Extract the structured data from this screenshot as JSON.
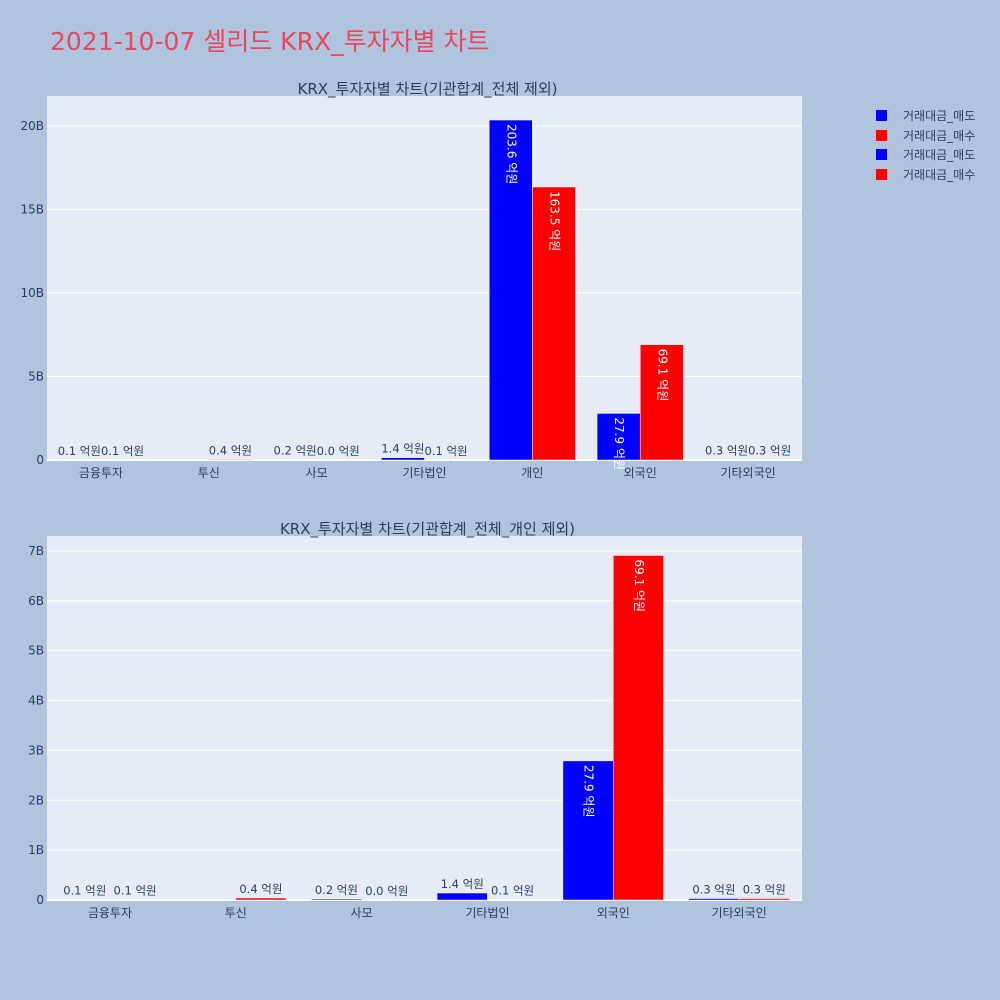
{
  "page_title": "2021-10-07 셀리드 KRX_투자자별 차트",
  "legend": [
    {
      "label": "거래대금_매도",
      "color": "#0000ff"
    },
    {
      "label": "거래대금_매수",
      "color": "#ff0000"
    },
    {
      "label": "거래대금_매도",
      "color": "#0000ff"
    },
    {
      "label": "거래대금_매수",
      "color": "#ff0000"
    }
  ],
  "chart_data": [
    {
      "type": "bar",
      "title": "KRX_투자자별 차트(기관합계_전체 제외)",
      "categories": [
        "금융투자",
        "투신",
        "사모",
        "기타법인",
        "개인",
        "외국인",
        "기타외국인"
      ],
      "ylim": [
        0,
        21800000000
      ],
      "ytick_values": [
        0,
        5000000000,
        10000000000,
        15000000000,
        20000000000
      ],
      "ytick_labels": [
        "0",
        "5B",
        "10B",
        "15B",
        "20B"
      ],
      "grid": true,
      "series": [
        {
          "name": "거래대금_매도",
          "color": "#0000ff",
          "values": [
            10000000,
            0,
            20000000,
            140000000,
            20360000000,
            2790000000,
            30000000
          ],
          "labels": [
            "0.1 억원",
            "",
            "0.2 억원",
            "1.4 억원",
            "203.6 억원",
            "27.9 억원",
            "0.3 억원"
          ]
        },
        {
          "name": "거래대금_매수",
          "color": "#ff0000",
          "values": [
            10000000,
            40000000,
            0,
            10000000,
            16350000000,
            6910000000,
            30000000
          ],
          "labels": [
            "0.1 억원",
            "0.4 억원",
            "0.0 억원",
            "0.1 억원",
            "163.5 억원",
            "69.1 억원",
            "0.3 억원"
          ]
        }
      ]
    },
    {
      "type": "bar",
      "title": "KRX_투자자별 차트(기관합계_전체_개인 제외)",
      "categories": [
        "금융투자",
        "투신",
        "사모",
        "기타법인",
        "외국인",
        "기타외국인"
      ],
      "ylim": [
        0,
        7300000000
      ],
      "ytick_values": [
        0,
        1000000000,
        2000000000,
        3000000000,
        4000000000,
        5000000000,
        6000000000,
        7000000000
      ],
      "ytick_labels": [
        "0",
        "1B",
        "2B",
        "3B",
        "4B",
        "5B",
        "6B",
        "7B"
      ],
      "grid": true,
      "series": [
        {
          "name": "거래대금_매도",
          "color": "#0000ff",
          "values": [
            10000000,
            0,
            20000000,
            140000000,
            2790000000,
            30000000
          ],
          "labels": [
            "0.1 억원",
            "",
            "0.2 억원",
            "1.4 억원",
            "27.9 억원",
            "0.3 억원"
          ]
        },
        {
          "name": "거래대금_매수",
          "color": "#ff0000",
          "values": [
            10000000,
            40000000,
            0,
            10000000,
            6910000000,
            30000000
          ],
          "labels": [
            "0.1 억원",
            "0.4 억원",
            "0.0 억원",
            "0.1 억원",
            "69.1 억원",
            "0.3 억원"
          ]
        }
      ]
    }
  ]
}
